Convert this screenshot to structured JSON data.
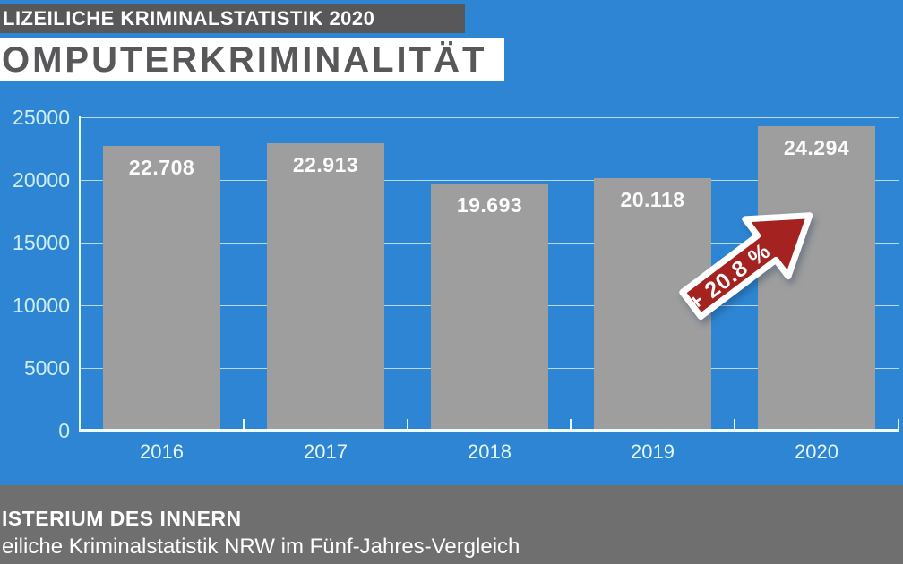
{
  "canvas": {
    "background_color": "#2e85d3"
  },
  "header": {
    "kicker": "LIZEILICHE KRIMINALSTATISTIK 2020",
    "kicker_bg_color": "#58585a",
    "kicker_text_color": "#ffffff",
    "title": "OMPUTERKRIMINALITÄT",
    "title_bg_color": "#ffffff",
    "title_text_color": "#58585a"
  },
  "chart_data": {
    "type": "bar",
    "title": "OMPUTERKRIMINALITÄT",
    "categories": [
      "2016",
      "2017",
      "2018",
      "2019",
      "2020"
    ],
    "values": [
      22708,
      22913,
      19693,
      20118,
      24294
    ],
    "value_labels": [
      "22.708",
      "22.913",
      "19.693",
      "20.118",
      "24.294"
    ],
    "xlabel": "",
    "ylabel": "",
    "ylim": [
      0,
      25000
    ],
    "y_ticks": [
      0,
      5000,
      10000,
      15000,
      20000,
      25000
    ],
    "y_tick_labels": [
      "0",
      "5000",
      "10000",
      "15000",
      "20000",
      "25000"
    ],
    "grid": true,
    "legend": false,
    "bar_color": "#9e9e9e",
    "bar_label_color": "#fcfcfc",
    "grid_color": "rgba(228,250,250,0.75)",
    "axis_color": "#eefcfc",
    "y_tick_label_color": "#cdeef0",
    "x_tick_label_color": "#e4f6f6",
    "annotation": {
      "text": "+ 20.8 %",
      "shape": "block-arrow-up-right",
      "fill_color": "#a42220",
      "border_color": "#ffffff",
      "text_color": "#ffffff"
    }
  },
  "footer": {
    "line1": "ISTERIUM DES INNERN",
    "line2": "eiliche Kriminalstatistik NRW im Fünf-Jahres-Vergleich",
    "bg_color": "#6f6f6f",
    "text_color": "#ffffff"
  }
}
